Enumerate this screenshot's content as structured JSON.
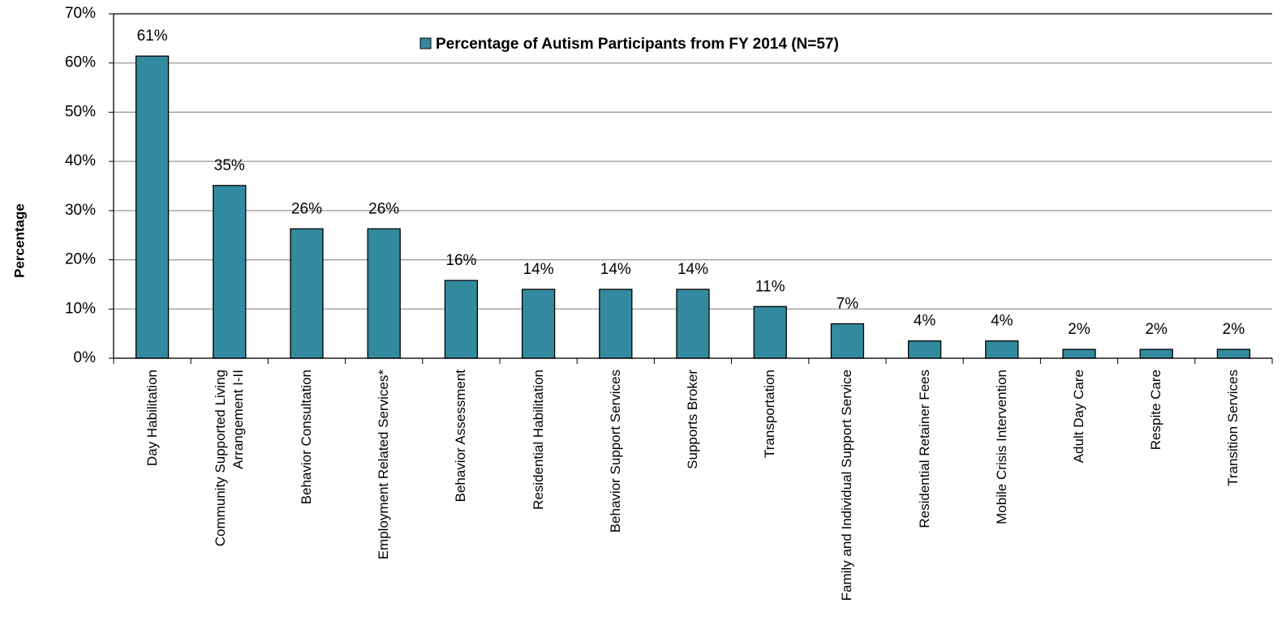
{
  "chart_data": {
    "type": "bar",
    "y_label": "Percentage",
    "categories": [
      "Day Habilitation",
      "Community Supported Living Arrangement I-II",
      "Behavior Consultation",
      "Employment Related Services*",
      "Behavior Assessment",
      "Residential Habilitation",
      "Behavior Support Services",
      "Supports Broker",
      "Transportation",
      "Family and Individual Support Service",
      "Residential Retainer Fees",
      "Mobile Crisis Intervention",
      "Adult Day Care",
      "Respite Care",
      "Transition Services"
    ],
    "series": [
      {
        "name": "Percentage of Autism Participants from FY 2014 (N=57)",
        "color": "#338a9e",
        "values": [
          61.4,
          35.1,
          26.3,
          26.3,
          15.8,
          14.0,
          14.0,
          14.0,
          10.5,
          7.0,
          3.51,
          3.51,
          1.8,
          1.8,
          1.8
        ],
        "value_labels": [
          "61%",
          "35%",
          "26%",
          "26%",
          "16%",
          "14%",
          "14%",
          "14%",
          "11%",
          "7%",
          "4%",
          "4%",
          "2%",
          "2%",
          "2%"
        ]
      }
    ],
    "ylim": [
      0,
      70
    ],
    "yticks": [
      {
        "value": 0,
        "label": "0%"
      },
      {
        "value": 10,
        "label": "10%"
      },
      {
        "value": 20,
        "label": "20%"
      },
      {
        "value": 30,
        "label": "30%"
      },
      {
        "value": 40,
        "label": "40%"
      },
      {
        "value": 50,
        "label": "50%"
      },
      {
        "value": 60,
        "label": "60%"
      },
      {
        "value": 70,
        "label": "70%"
      }
    ],
    "grid": true,
    "legend": "top"
  }
}
